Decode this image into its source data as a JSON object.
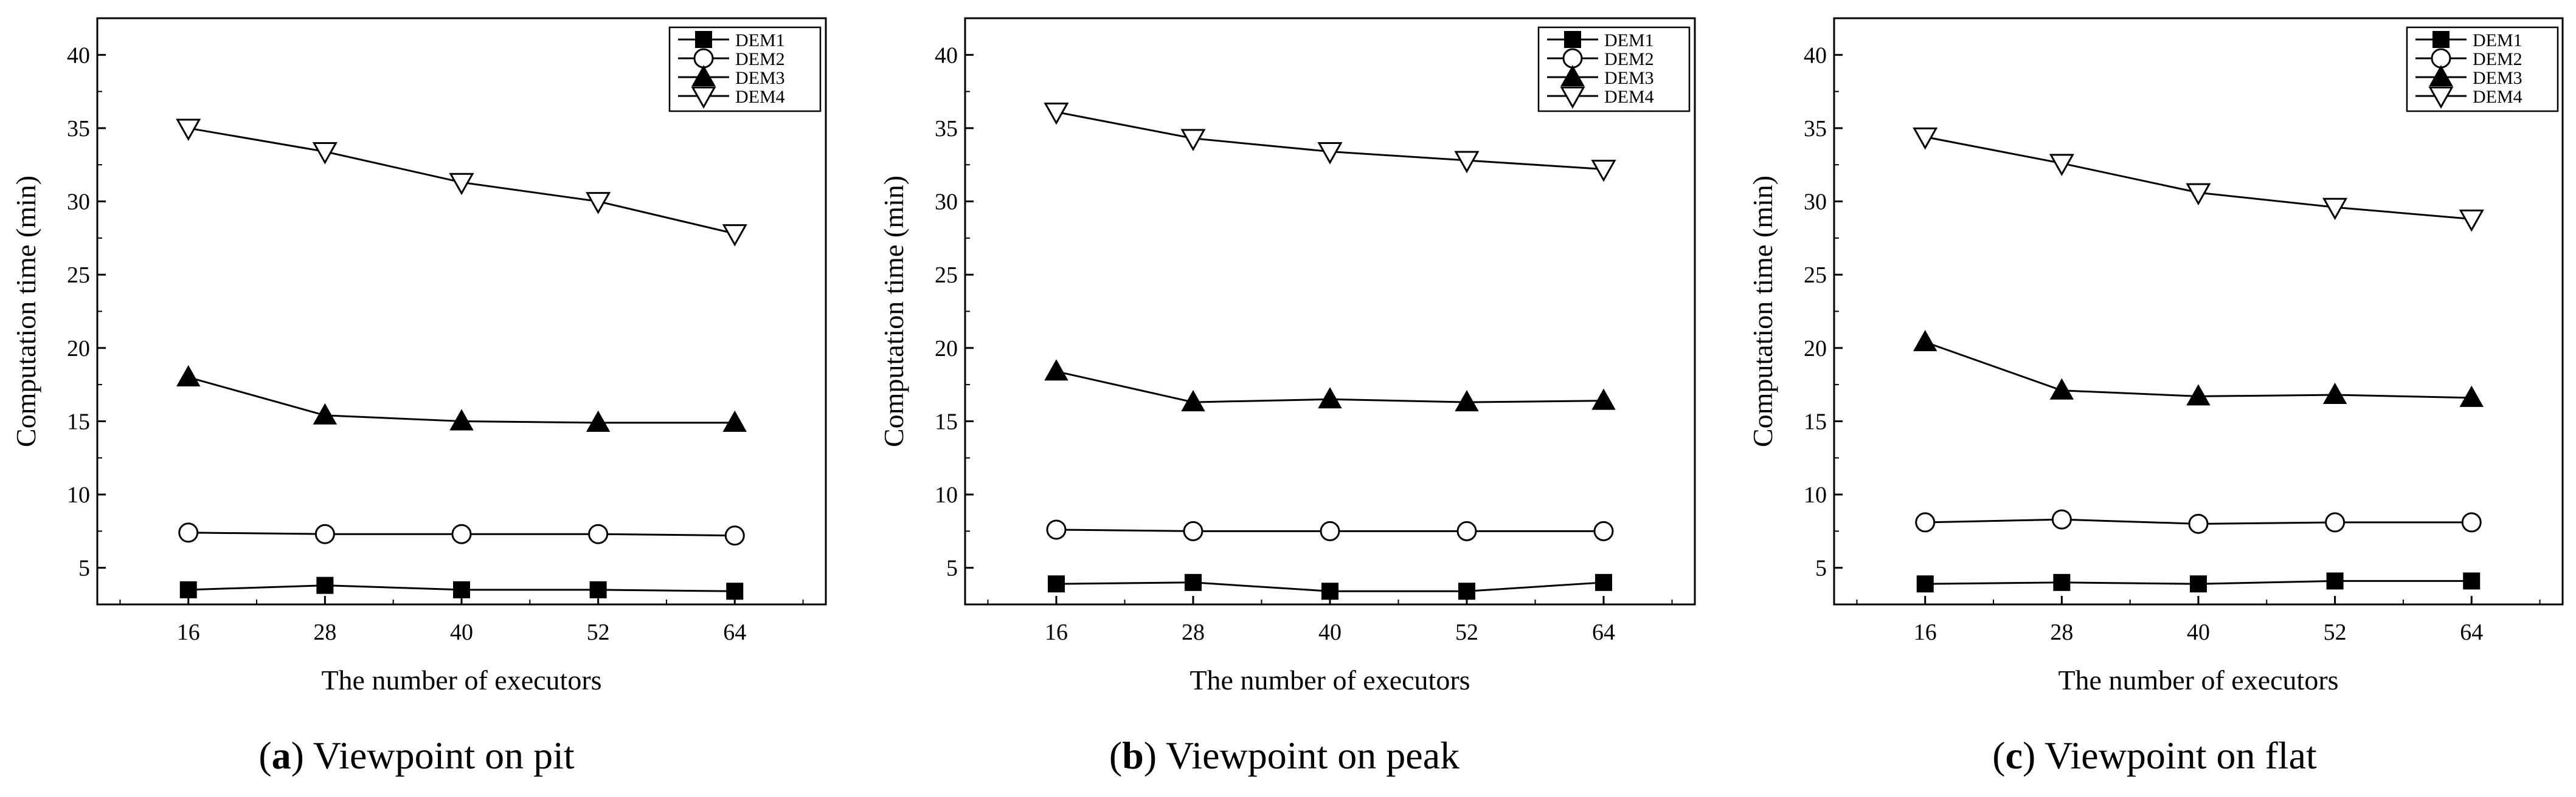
{
  "chart_data": [
    {
      "type": "line",
      "panel_label": "a",
      "caption": "Viewpoint on pit",
      "title": "",
      "xlabel": "The number of executors",
      "ylabel": "Computation time (min)",
      "x": [
        16,
        28,
        40,
        52,
        64
      ],
      "xlim": [
        8,
        72
      ],
      "ylim": [
        2.5,
        42.5
      ],
      "yticks": [
        5,
        10,
        15,
        20,
        25,
        30,
        35,
        40
      ],
      "legend": "top-right",
      "series": [
        {
          "name": "DEM1",
          "marker": "filled-square",
          "values": [
            3.5,
            3.8,
            3.5,
            3.5,
            3.4
          ]
        },
        {
          "name": "DEM2",
          "marker": "open-circle",
          "values": [
            7.4,
            7.3,
            7.3,
            7.3,
            7.2
          ]
        },
        {
          "name": "DEM3",
          "marker": "filled-triangle-up",
          "values": [
            18.0,
            15.4,
            15.0,
            14.9,
            14.9
          ]
        },
        {
          "name": "DEM4",
          "marker": "open-triangle-down",
          "values": [
            35.0,
            33.4,
            31.3,
            30.0,
            27.8
          ]
        }
      ]
    },
    {
      "type": "line",
      "panel_label": "b",
      "caption": "Viewpoint on peak",
      "title": "",
      "xlabel": "The number of executors",
      "ylabel": "Computation time (min)",
      "x": [
        16,
        28,
        40,
        52,
        64
      ],
      "xlim": [
        8,
        72
      ],
      "ylim": [
        2.5,
        42.5
      ],
      "yticks": [
        5,
        10,
        15,
        20,
        25,
        30,
        35,
        40
      ],
      "legend": "top-right",
      "series": [
        {
          "name": "DEM1",
          "marker": "filled-square",
          "values": [
            3.9,
            4.0,
            3.4,
            3.4,
            4.0
          ]
        },
        {
          "name": "DEM2",
          "marker": "open-circle",
          "values": [
            7.6,
            7.5,
            7.5,
            7.5,
            7.5
          ]
        },
        {
          "name": "DEM3",
          "marker": "filled-triangle-up",
          "values": [
            18.4,
            16.3,
            16.5,
            16.3,
            16.4
          ]
        },
        {
          "name": "DEM4",
          "marker": "open-triangle-down",
          "values": [
            36.1,
            34.3,
            33.4,
            32.8,
            32.2
          ]
        }
      ]
    },
    {
      "type": "line",
      "panel_label": "c",
      "caption": "Viewpoint on flat",
      "title": "",
      "xlabel": "The number of executors",
      "ylabel": "Computation time (min)",
      "x": [
        16,
        28,
        40,
        52,
        64
      ],
      "xlim": [
        8,
        72
      ],
      "ylim": [
        2.5,
        42.5
      ],
      "yticks": [
        5,
        10,
        15,
        20,
        25,
        30,
        35,
        40
      ],
      "legend": "top-right",
      "series": [
        {
          "name": "DEM1",
          "marker": "filled-square",
          "values": [
            3.9,
            4.0,
            3.9,
            4.1,
            4.1
          ]
        },
        {
          "name": "DEM2",
          "marker": "open-circle",
          "values": [
            8.1,
            8.3,
            8.0,
            8.1,
            8.1
          ]
        },
        {
          "name": "DEM3",
          "marker": "filled-triangle-up",
          "values": [
            20.4,
            17.1,
            16.7,
            16.8,
            16.6
          ]
        },
        {
          "name": "DEM4",
          "marker": "open-triangle-down",
          "values": [
            34.4,
            32.6,
            30.6,
            29.6,
            28.8
          ]
        }
      ]
    }
  ]
}
